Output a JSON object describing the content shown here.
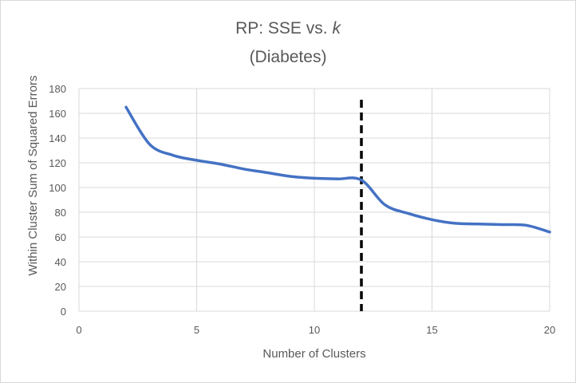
{
  "chart_data": {
    "type": "line",
    "title_prefix": "RP: SSE vs. ",
    "title_k": "k",
    "subtitle": "(Diabetes)",
    "xlabel": "Number of Clusters",
    "ylabel": "Within Cluster Sum of Squared Errors",
    "xlim": [
      0,
      20
    ],
    "ylim": [
      0,
      180
    ],
    "x_ticks": [
      0,
      5,
      10,
      15,
      20
    ],
    "y_ticks": [
      0,
      20,
      40,
      60,
      80,
      100,
      120,
      140,
      160,
      180
    ],
    "grid": true,
    "legend": "none",
    "series": [
      {
        "color": "#4472c4",
        "x": [
          2,
          3,
          4,
          5,
          6,
          7,
          8,
          9,
          10,
          11,
          12,
          13,
          14,
          15,
          16,
          17,
          18,
          19,
          20
        ],
        "y": [
          165,
          135,
          126,
          122,
          119,
          115,
          112,
          109,
          107.5,
          107,
          106,
          86,
          79,
          74,
          71,
          70.5,
          70,
          69.5,
          64
        ]
      }
    ],
    "reference_line": {
      "x": 12,
      "color": "#000000",
      "style": "dashed"
    }
  }
}
